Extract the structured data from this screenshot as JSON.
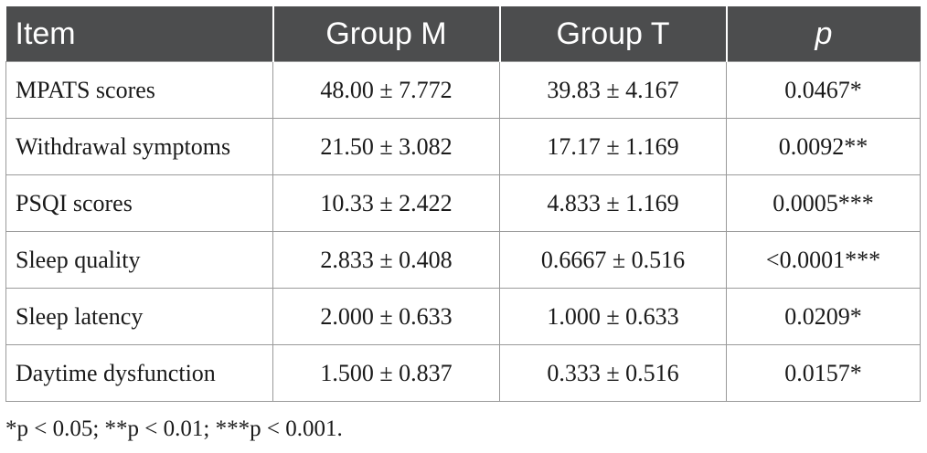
{
  "table": {
    "headers": [
      "Item",
      "Group M",
      "Group T",
      "p"
    ],
    "rows": [
      {
        "item": "MPATS scores",
        "group_m": "48.00 ± 7.772",
        "group_t": "39.83 ± 4.167",
        "p": "0.0467*"
      },
      {
        "item": "Withdrawal symptoms",
        "group_m": "21.50 ± 3.082",
        "group_t": "17.17 ± 1.169",
        "p": "0.0092**"
      },
      {
        "item": "PSQI scores",
        "group_m": "10.33 ± 2.422",
        "group_t": "4.833 ± 1.169",
        "p": "0.0005***"
      },
      {
        "item": "Sleep quality",
        "group_m": "2.833 ± 0.408",
        "group_t": "0.6667 ± 0.516",
        "p": "<0.0001***"
      },
      {
        "item": "Sleep latency",
        "group_m": "2.000 ± 0.633",
        "group_t": "1.000 ± 0.633",
        "p": "0.0209*"
      },
      {
        "item": "Daytime dysfunction",
        "group_m": "1.500 ± 0.837",
        "group_t": "0.333 ± 0.516",
        "p": "0.0157*"
      }
    ]
  },
  "footnote": "*p < 0.05; **p < 0.01; ***p < 0.001.",
  "colors": {
    "header_bg": "#4c4d4e",
    "header_text": "#ffffff",
    "grid": "#9a9a9a"
  }
}
